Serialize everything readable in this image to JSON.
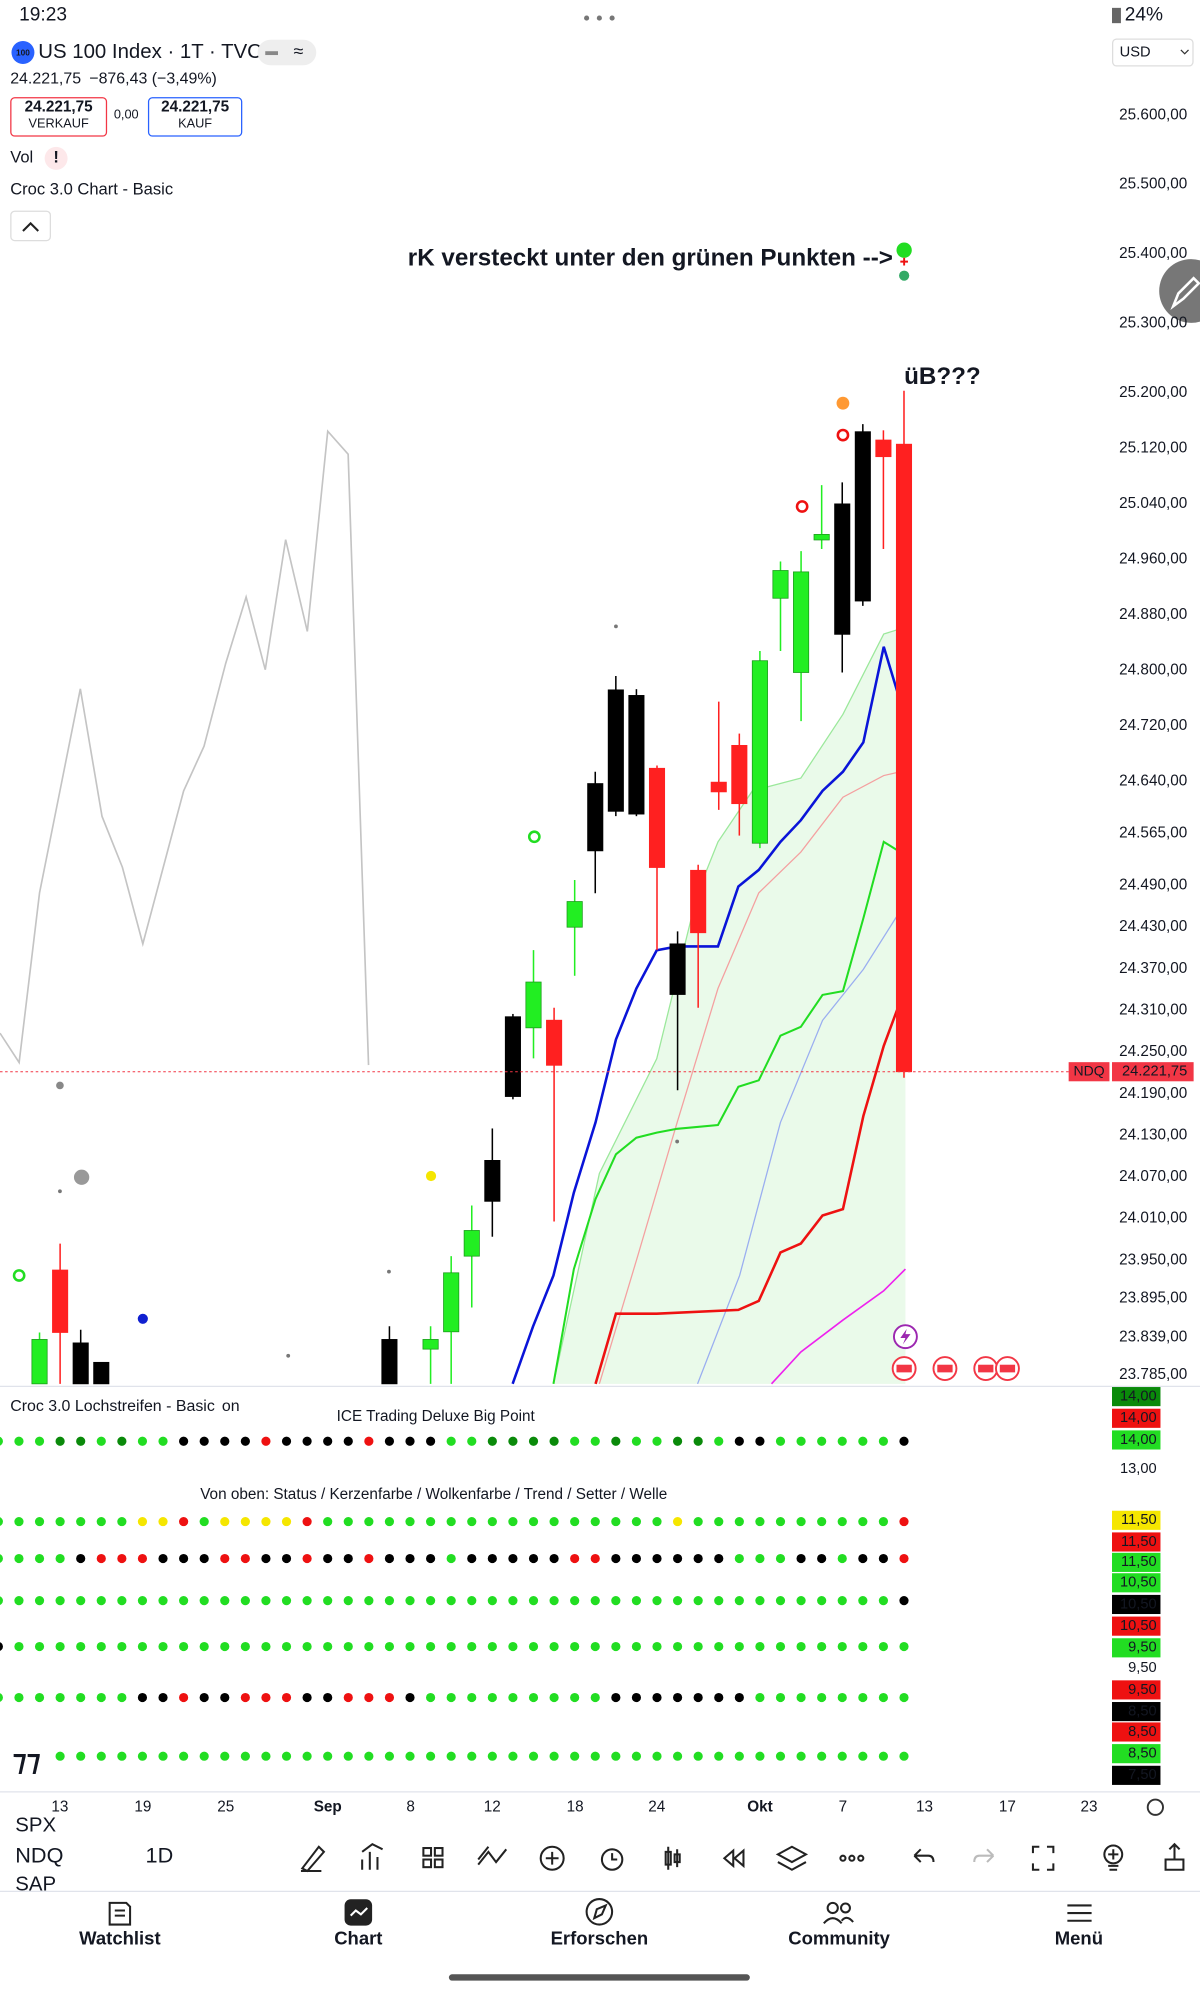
{
  "status_bar": {
    "time": "19:23",
    "battery": "24%"
  },
  "header": {
    "badge": "100",
    "symbol": "US 100 Index · 1T · TVC",
    "price": "24.221,75",
    "change": "−876,43 (−3,49%)",
    "sell_price": "24.221,75",
    "sell_label": "VERKAUF",
    "spread": "0,00",
    "buy_price": "24.221,75",
    "buy_label": "KAUF",
    "currency": "USD"
  },
  "indicators": {
    "vol": "Vol",
    "vol_alert": "!",
    "croc": "Croc 3.0 Chart - Basic"
  },
  "annotations": {
    "note": "rK versteckt unter den grünen Punkten -->",
    "question": "üB???"
  },
  "chart_data": {
    "type": "candlestick",
    "ylim": [
      23772,
      25729
    ],
    "yticks": [
      {
        "value": 25600,
        "label": "25.600,00"
      },
      {
        "value": 25500,
        "label": "25.500,00"
      },
      {
        "value": 25400,
        "label": "25.400,00"
      },
      {
        "value": 25300,
        "label": "25.300,00"
      },
      {
        "value": 25200,
        "label": "25.200,00"
      },
      {
        "value": 25120,
        "label": "25.120,00"
      },
      {
        "value": 25040,
        "label": "25.040,00"
      },
      {
        "value": 24960,
        "label": "24.960,00"
      },
      {
        "value": 24880,
        "label": "24.880,00"
      },
      {
        "value": 24800,
        "label": "24.800,00"
      },
      {
        "value": 24720,
        "label": "24.720,00"
      },
      {
        "value": 24640,
        "label": "24.640,00"
      },
      {
        "value": 24565,
        "label": "24.565,00"
      },
      {
        "value": 24490,
        "label": "24.490,00"
      },
      {
        "value": 24430,
        "label": "24.430,00"
      },
      {
        "value": 24370,
        "label": "24.370,00"
      },
      {
        "value": 24310,
        "label": "24.310,00"
      },
      {
        "value": 24250,
        "label": "24.250,00"
      },
      {
        "value": 24190,
        "label": "24.190,00"
      },
      {
        "value": 24130,
        "label": "24.130,00"
      },
      {
        "value": 24070,
        "label": "24.070,00"
      },
      {
        "value": 24010,
        "label": "24.010,00"
      },
      {
        "value": 23950,
        "label": "23.950,00"
      },
      {
        "value": 23895,
        "label": "23.895,00"
      },
      {
        "value": 23839,
        "label": "23.839,00"
      },
      {
        "value": 23785,
        "label": "23.785,00"
      }
    ],
    "open": [
      23772,
      23936,
      23831,
      23803,
      null,
      null,
      null,
      null,
      null,
      null,
      null,
      null,
      null,
      null,
      null,
      null,
      null,
      23836,
      null,
      23822,
      23847,
      23956,
      24094,
      24301,
      24285,
      24296,
      24430,
      24637,
      24772,
      24764,
      24659,
      24406,
      24512,
      24639,
      24692,
      24551,
      24904,
      24797,
      24988,
      25040,
      25144,
      25132,
      25126
    ],
    "high": [
      23846,
      23974,
      23850,
      23803,
      null,
      null,
      null,
      null,
      null,
      null,
      null,
      null,
      null,
      null,
      null,
      null,
      null,
      23855,
      null,
      23855,
      23956,
      24029,
      24140,
      24305,
      24397,
      24314,
      24498,
      24654,
      24792,
      24773,
      24663,
      24424,
      24520,
      24755,
      24709,
      24828,
      24957,
      24972,
      25067,
      25071,
      25155,
      25146,
      25203
    ],
    "low": [
      23772,
      23772,
      23772,
      23772,
      null,
      null,
      null,
      null,
      null,
      null,
      null,
      null,
      null,
      null,
      null,
      null,
      null,
      23772,
      null,
      23772,
      23772,
      23882,
      23984,
      24182,
      24241,
      24006,
      24360,
      24479,
      24590,
      24590,
      24397,
      24195,
      24314,
      24599,
      24562,
      24544,
      24828,
      24727,
      24975,
      24797,
      24893,
      24975,
      24213
    ],
    "close": [
      23836,
      23846,
      23772,
      23772,
      null,
      null,
      null,
      null,
      null,
      null,
      null,
      null,
      null,
      null,
      null,
      null,
      null,
      23772,
      null,
      23836,
      23932,
      23993,
      24035,
      24186,
      24351,
      24231,
      24467,
      24540,
      24597,
      24593,
      24516,
      24333,
      24422,
      24625,
      24608,
      24814,
      24944,
      24942,
      24996,
      24852,
      24900,
      25108,
      24221.75
    ],
    "colors": [
      "#22ee22",
      "#ff2020",
      "#000000",
      "#000000",
      null,
      null,
      null,
      null,
      null,
      null,
      null,
      null,
      null,
      null,
      null,
      null,
      null,
      "#000000",
      null,
      "#22ee22",
      "#22ee22",
      "#22ee22",
      "#000000",
      "#000000",
      "#22ee22",
      "#ff2020",
      "#22ee22",
      "#000000",
      "#000000",
      "#000000",
      "#ff2020",
      "#000000",
      "#ff2020",
      "#ff2020",
      "#ff2020",
      "#22ee22",
      "#22ee22",
      "#22ee22",
      "#22ee22",
      "#000000",
      "#000000",
      "#ff2020",
      "#ff2020"
    ],
    "last_price": {
      "symbol": "NDQ",
      "value": 24221.75,
      "label": "24.221,75"
    },
    "xtick_labels": [
      "13",
      "19",
      "25",
      "Sep",
      "8",
      "12",
      "18",
      "24",
      "Okt",
      "7",
      "13",
      "17",
      "23"
    ]
  },
  "lower_panel": {
    "title": "Croc 3.0 Lochstreifen - Basic",
    "status": "on",
    "label_top": "ICE Trading Deluxe Big Point",
    "label_rows": "Von oben: Status / Kerzenfarbe / Wolkenfarbe / Trend / Setter / Welle",
    "scale_labels": [
      "14,00",
      "14,00",
      "14,00",
      "13,00",
      "11,50",
      "11,50",
      "11,50",
      "10,50",
      "10,50",
      "10,50",
      "9,50",
      "9,50",
      "9,50",
      "8,50",
      "8,50",
      "8,50",
      "7,50"
    ]
  },
  "toolbar": {
    "symbols": [
      "SPX",
      "NDQ",
      "SAP"
    ],
    "interval": "1D"
  },
  "nav": [
    "Watchlist",
    "Chart",
    "Erforschen",
    "Community",
    "Menü"
  ]
}
